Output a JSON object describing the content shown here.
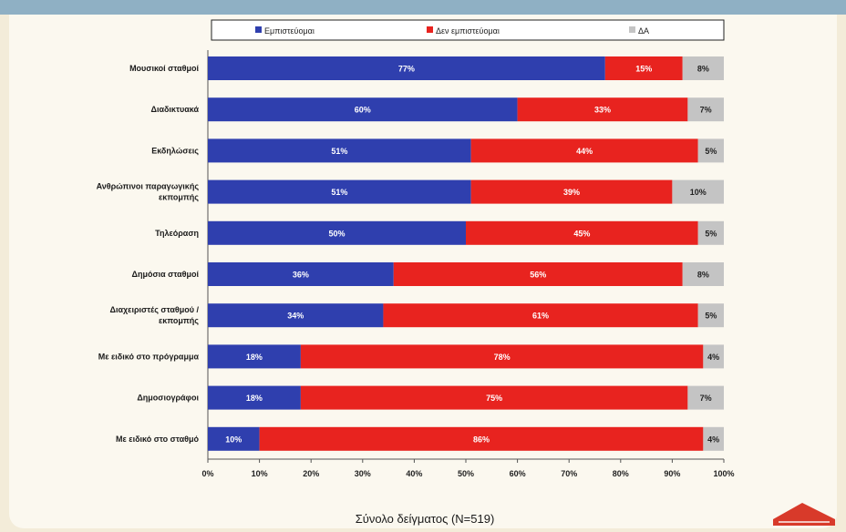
{
  "chart_data": {
    "type": "bar",
    "stacked": true,
    "orientation": "horizontal",
    "categories": [
      "Μουσικοί σταθμοί",
      "Διαδικτυακά",
      "Εκδηλώσεις",
      "Ανθρώπινοι παραγωγικής εκπομπής",
      "Τηλεόραση",
      "Δημόσια σταθμοί",
      "Διαχειριστές σταθμού / εκπομπής",
      "Με ειδικό στο πρόγραμμα",
      "Δημοσιογράφοι",
      "Με ειδικό στο σταθμό"
    ],
    "series": [
      {
        "name": "Εμπιστεύομαι",
        "color": "#2f3fae",
        "values": [
          77,
          60,
          51,
          51,
          50,
          36,
          34,
          18,
          18,
          10
        ]
      },
      {
        "name": "Δεν εμπιστεύομαι",
        "color": "#e8231f",
        "values": [
          15,
          33,
          44,
          39,
          45,
          56,
          61,
          78,
          75,
          86
        ]
      },
      {
        "name": "ΔΑ",
        "color": "#c4c4c4",
        "values": [
          8,
          7,
          5,
          10,
          5,
          8,
          5,
          4,
          7,
          4
        ]
      }
    ],
    "data_labels": [
      [
        "77%",
        "15%",
        "8%"
      ],
      [
        "60%",
        "33%",
        "7%"
      ],
      [
        "51%",
        "44%",
        "5%"
      ],
      [
        "51%",
        "39%",
        "10%"
      ],
      [
        "50%",
        "45%",
        "5%"
      ],
      [
        "36%",
        "56%",
        "8%"
      ],
      [
        "34%",
        "61%",
        "5%"
      ],
      [
        "18%",
        "78%",
        "4%"
      ],
      [
        "18%",
        "75%",
        "7%"
      ],
      [
        "10%",
        "86%",
        "4%"
      ]
    ],
    "xlim": [
      0,
      100
    ],
    "x_ticks": [
      "0%",
      "10%",
      "20%",
      "30%",
      "40%",
      "50%",
      "60%",
      "70%",
      "80%",
      "90%",
      "100%"
    ],
    "xlabel": "Σύνολο δείγματος (N=519)",
    "legend_position": "top",
    "grid": false
  },
  "colors": {
    "topbar": "#8fb0c4",
    "background": "#f3ecd9",
    "panel": "#fbf8ef",
    "logo": "#d83a2a"
  }
}
